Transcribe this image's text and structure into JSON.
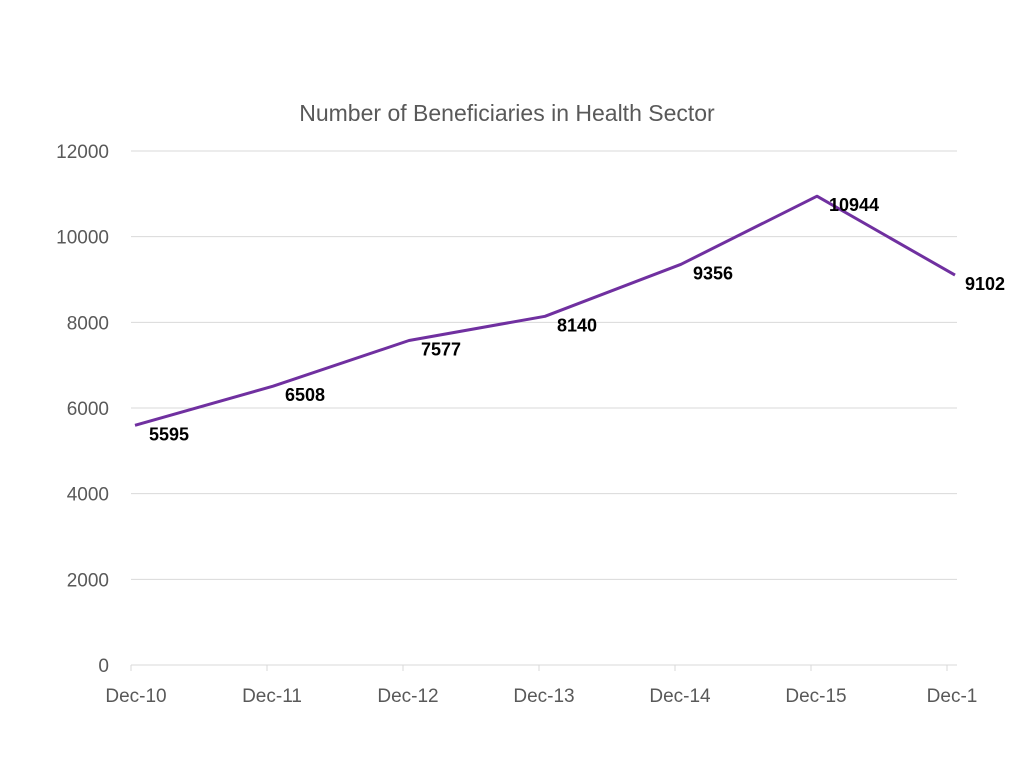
{
  "chart_data": {
    "type": "line",
    "title": "Number of Beneficiaries in Health Sector",
    "xlabel": "",
    "ylabel": "",
    "categories": [
      "Dec-10",
      "Dec-11",
      "Dec-12",
      "Dec-13",
      "Dec-14",
      "Dec-15",
      "Dec-1"
    ],
    "series": [
      {
        "values": [
          5595,
          6508,
          7577,
          8140,
          9356,
          10944,
          9102
        ]
      }
    ],
    "data_labels": [
      "5595",
      "6508",
      "7577",
      "8140",
      "9356",
      "10944",
      "9102"
    ],
    "ylim": [
      0,
      12000
    ],
    "y_ticks": [
      0,
      2000,
      4000,
      6000,
      8000,
      10000,
      12000
    ],
    "grid": true,
    "legend": "none"
  },
  "colors": {
    "line": "#7030A0",
    "gridline": "#D9D9D9",
    "text": "#595959",
    "data_label": "#000000"
  }
}
